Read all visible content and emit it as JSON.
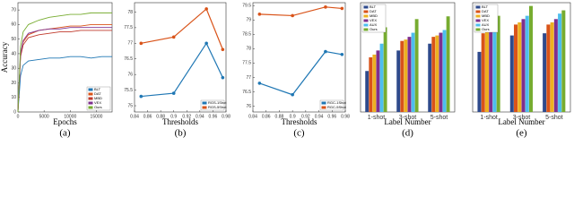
{
  "chart_data": [
    {
      "type": "line",
      "caption": "(a)",
      "xlabel": "Epochs",
      "ylabel": "Accuracy",
      "markers": false,
      "legend": "lower right",
      "x": [
        0,
        500,
        1000,
        2000,
        4000,
        6000,
        8000,
        10000,
        12000,
        14000,
        16000,
        18000
      ],
      "xlim": [
        0,
        18000
      ],
      "xticks": [
        0,
        5000,
        10000,
        15000
      ],
      "ylim": [
        0,
        75
      ],
      "yticks": [
        0,
        10,
        20,
        30,
        40,
        50,
        60,
        70
      ],
      "series": [
        {
          "name": "BLT",
          "color": "#1f77b4",
          "values": [
            0,
            25,
            32,
            35,
            36,
            37,
            37,
            38,
            38,
            37,
            38,
            38
          ]
        },
        {
          "name": "DAT",
          "color": "#d95319",
          "values": [
            0,
            40,
            48,
            53,
            56,
            57,
            58,
            59,
            59,
            60,
            60,
            60
          ]
        },
        {
          "name": "MBD",
          "color": "#c0392b",
          "values": [
            0,
            38,
            46,
            51,
            53,
            54,
            55,
            55,
            56,
            56,
            56,
            56
          ]
        },
        {
          "name": "VEX",
          "color": "#7e2f8e",
          "values": [
            0,
            40,
            49,
            54,
            56,
            57,
            57,
            58,
            58,
            58,
            58,
            58
          ]
        },
        {
          "name": "Ours",
          "color": "#77ac30",
          "values": [
            0,
            45,
            55,
            60,
            63,
            65,
            66,
            67,
            67,
            68,
            68,
            68
          ]
        }
      ]
    },
    {
      "type": "line",
      "caption": "(b)",
      "xlabel": "Thresholds",
      "markers": true,
      "legend": "lower right",
      "x": [
        0.85,
        0.9,
        0.95,
        0.975
      ],
      "xlim": [
        0.84,
        0.98
      ],
      "xticks": [
        0.84,
        0.86,
        0.88,
        0.9,
        0.92,
        0.94,
        0.96,
        0.98
      ],
      "ylim": [
        74.8,
        78.3
      ],
      "yticks": [
        75,
        75.5,
        76,
        76.5,
        77,
        77.5,
        78
      ],
      "series": [
        {
          "name": "RGS-1Shot",
          "color": "#1f77b4",
          "values": [
            75.3,
            75.4,
            77.0,
            75.9
          ]
        },
        {
          "name": "RGS-5Shot",
          "color": "#d95319",
          "values": [
            77.0,
            77.2,
            78.1,
            76.8
          ]
        }
      ]
    },
    {
      "type": "line",
      "caption": "(c)",
      "xlabel": "Thresholds",
      "markers": true,
      "legend": "lower right",
      "x": [
        0.85,
        0.9,
        0.95,
        0.975
      ],
      "xlim": [
        0.84,
        0.98
      ],
      "xticks": [
        0.84,
        0.86,
        0.88,
        0.9,
        0.92,
        0.94,
        0.96,
        0.98
      ],
      "ylim": [
        75.8,
        79.6
      ],
      "yticks": [
        76,
        76.5,
        77,
        77.5,
        78,
        78.5,
        79,
        79.5
      ],
      "series": [
        {
          "name": "RGC-1Shot",
          "color": "#1f77b4",
          "values": [
            76.8,
            76.4,
            77.9,
            77.8
          ]
        },
        {
          "name": "RGC-5Shot",
          "color": "#d95319",
          "values": [
            79.2,
            79.15,
            79.45,
            79.4
          ]
        }
      ]
    },
    {
      "type": "bar",
      "caption": "(d)",
      "xlabel": "Label Number",
      "legend": "upper left",
      "categories": [
        "1-shot",
        "3-shot",
        "5-shot"
      ],
      "ylim": [
        0,
        80
      ],
      "series": [
        {
          "name": "BLT",
          "color": "#2e4a8c",
          "values": [
            30,
            45,
            50
          ]
        },
        {
          "name": "DAT",
          "color": "#d95319",
          "values": [
            40,
            52,
            55
          ]
        },
        {
          "name": "MBD",
          "color": "#edb120",
          "values": [
            42,
            53,
            56
          ]
        },
        {
          "name": "VEX",
          "color": "#7e2f8e",
          "values": [
            45,
            55,
            58
          ]
        },
        {
          "name": "AUX",
          "color": "#4dbeee",
          "values": [
            50,
            58,
            60
          ]
        },
        {
          "name": "Ours",
          "color": "#77ac30",
          "values": [
            62,
            68,
            70
          ]
        }
      ]
    },
    {
      "type": "bar",
      "caption": "(e)",
      "xlabel": "Label Number",
      "legend": "upper left",
      "categories": [
        "1-shot",
        "3-shot",
        "5-shot"
      ],
      "ylim": [
        0,
        100
      ],
      "series": [
        {
          "name": "BLT",
          "color": "#2e4a8c",
          "values": [
            55,
            70,
            72
          ]
        },
        {
          "name": "DAT",
          "color": "#d95319",
          "values": [
            72,
            80,
            80
          ]
        },
        {
          "name": "MBD",
          "color": "#edb120",
          "values": [
            75,
            82,
            82
          ]
        },
        {
          "name": "VEX",
          "color": "#7e2f8e",
          "values": [
            78,
            85,
            85
          ]
        },
        {
          "name": "AUX",
          "color": "#4dbeee",
          "values": [
            82,
            88,
            90
          ]
        },
        {
          "name": "Ours",
          "color": "#77ac30",
          "values": [
            88,
            97,
            93
          ]
        }
      ]
    }
  ]
}
